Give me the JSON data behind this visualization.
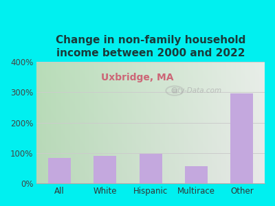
{
  "title": "Change in non-family household\nincome between 2000 and 2022",
  "subtitle": "Uxbridge, MA",
  "categories": [
    "All",
    "White",
    "Hispanic",
    "Multirace",
    "Other"
  ],
  "values": [
    83,
    90,
    97,
    57,
    297
  ],
  "bar_color": "#c4a8de",
  "title_color": "#1a3a3a",
  "subtitle_color": "#cc6677",
  "background_outer": "#00f0f0",
  "ylim": [
    0,
    400
  ],
  "yticks": [
    0,
    100,
    200,
    300,
    400
  ],
  "ytick_labels": [
    "0%",
    "100%",
    "200%",
    "300%",
    "400%"
  ],
  "grid_color": "#cccccc",
  "watermark": "City-Data.com",
  "title_fontsize": 11,
  "subtitle_fontsize": 10,
  "tick_fontsize": 8.5,
  "bar_width": 0.5,
  "grad_left": "#b8ddb8",
  "grad_right": "#e8e8e8",
  "grad_top": "#d8eed8",
  "grad_bottom": "#c8e8c0"
}
